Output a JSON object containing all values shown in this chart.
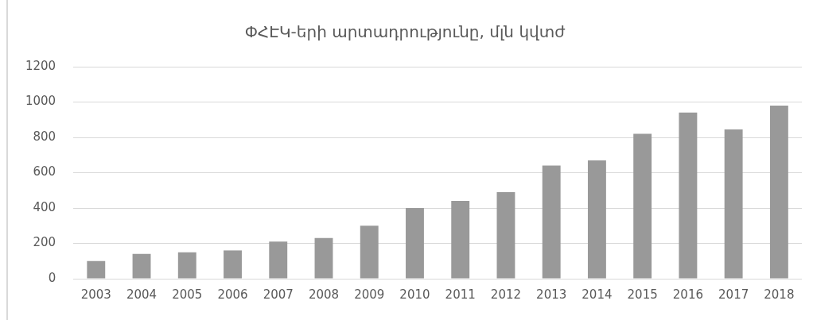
{
  "chart_data": {
    "type": "bar",
    "title": "ՓՀԷԿ-երի արտադրությունը, մլն կվտժ",
    "categories": [
      "2003",
      "2004",
      "2005",
      "2006",
      "2007",
      "2008",
      "2009",
      "2010",
      "2011",
      "2012",
      "2013",
      "2014",
      "2015",
      "2016",
      "2017",
      "2018"
    ],
    "values": [
      100,
      140,
      150,
      160,
      210,
      230,
      300,
      400,
      440,
      490,
      640,
      670,
      820,
      940,
      845,
      980
    ],
    "color": "#999999",
    "ylim": [
      0,
      1200
    ],
    "yticks": [
      0,
      200,
      400,
      600,
      800,
      1000,
      1200
    ],
    "grid": "y",
    "legend": false
  }
}
